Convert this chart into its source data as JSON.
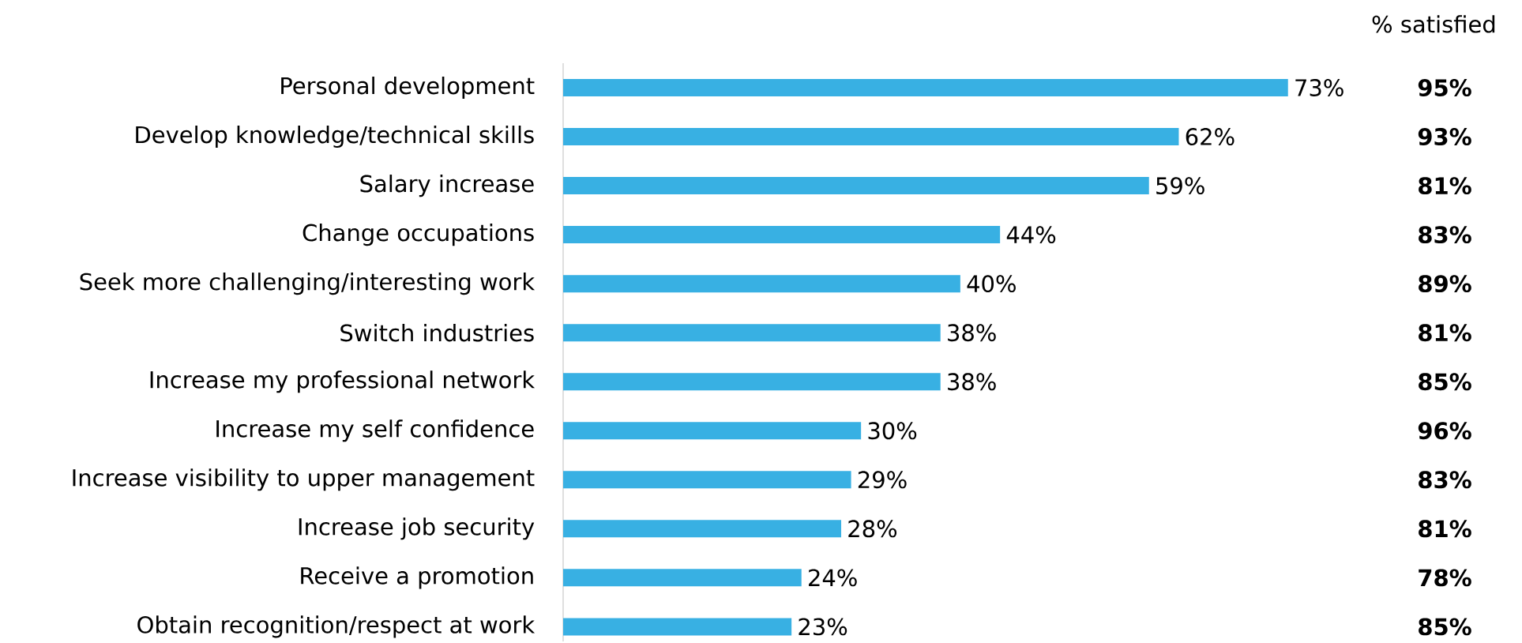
{
  "chart_data": {
    "type": "bar",
    "orientation": "horizontal",
    "color": "#38b0e3",
    "categories": [
      "Personal development",
      "Develop knowledge/technical skills",
      "Salary increase",
      "Change occupations",
      "Seek more challenging/interesting work",
      "Switch industries",
      "Increase my professional network",
      "Increase my self confidence",
      "Increase visibility to upper management",
      "Increase job security",
      "Receive a promotion",
      "Obtain recognition/respect at work"
    ],
    "values": [
      73,
      62,
      59,
      44,
      40,
      38,
      38,
      30,
      29,
      28,
      24,
      23
    ],
    "value_labels": [
      "73%",
      "62%",
      "59%",
      "44%",
      "40%",
      "38%",
      "38%",
      "30%",
      "29%",
      "28%",
      "24%",
      "23%"
    ],
    "annotations": [
      "% satisfied",
      "95%",
      "93%",
      "81%",
      "83%",
      "89%",
      "81%",
      "85%",
      "96%",
      "83%",
      "81%",
      "78%",
      "85%"
    ]
  }
}
